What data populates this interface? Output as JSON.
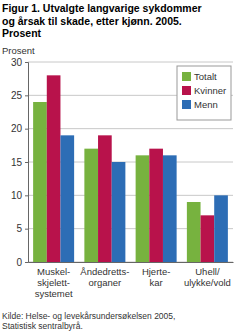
{
  "chart_data": {
    "type": "bar",
    "title": "Figur 1. Utvalgte langvarige sykdommer\nog årsak til skade, etter kjønn. 2005.\nProsent",
    "y_label": "Prosent",
    "categories": [
      "Muskel-\nskjelett-\nsystemet",
      "Åndedretts-\norganer",
      "Hjerte-\nkar",
      "Uhell/\nulykke/vold"
    ],
    "series": [
      {
        "name": "Totalt",
        "color": "#77b23f",
        "values": [
          24,
          17,
          16,
          9
        ]
      },
      {
        "name": "Kvinner",
        "color": "#b8124b",
        "values": [
          28,
          19,
          17,
          7
        ]
      },
      {
        "name": "Menn",
        "color": "#2d6db5",
        "values": [
          19,
          15,
          16,
          10
        ]
      }
    ],
    "ylim": [
      0,
      30
    ],
    "yticks": [
      0,
      5,
      10,
      15,
      20,
      25,
      30
    ],
    "grid": true,
    "legend": "top-right",
    "source": "Kilde: Helse- og levekårsundersøkelsen 2005,\nStatistisk sentralbyrå."
  }
}
